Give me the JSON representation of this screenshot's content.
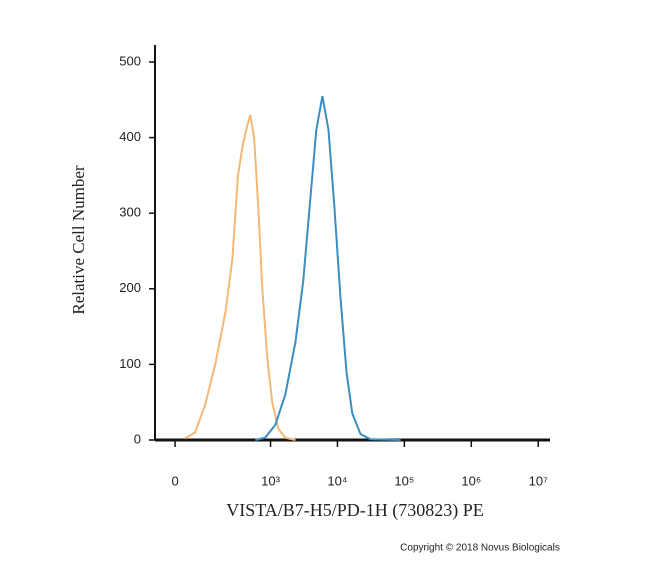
{
  "chart_data": {
    "type": "line",
    "xlabel": "VISTA/B7-H5/PD-1H (730823) PE",
    "ylabel": "Relative Cell Number",
    "annotation": "Copyright © 2018 Novus Biologicals",
    "xscale": "biexponential",
    "xlim": [
      -56,
      15000000
    ],
    "xticks": [
      0,
      {
        "value": 1000,
        "label": "10³"
      },
      {
        "value": 10000,
        "label": "10⁴"
      },
      {
        "value": 100000,
        "label": "10⁵"
      },
      {
        "value": 1000000,
        "label": "10⁶"
      },
      {
        "value": 10000000,
        "label": "10⁷"
      }
    ],
    "ylim": [
      0,
      500
    ],
    "yticks": [
      0,
      100,
      200,
      300,
      400,
      500
    ],
    "series": [
      {
        "color": "#f2b877",
        "x": [
          26,
          56,
          91,
          140,
          207,
          264,
          323,
          381,
          444,
          497,
          567,
          653,
          751,
          890,
          1060,
          1306,
          1665,
          2360
        ],
        "values": [
          2,
          10,
          45,
          100,
          170,
          240,
          350,
          390,
          415,
          430,
          400,
          310,
          200,
          110,
          50,
          15,
          3,
          0
        ]
      },
      {
        "color": "#3a8fc0",
        "x": [
          591,
          828,
          1180,
          1665,
          2360,
          3080,
          3950,
          4830,
          5960,
          7350,
          8980,
          11080,
          13670,
          16700,
          22100,
          31100,
          88000
        ],
        "values": [
          0,
          3,
          20,
          60,
          130,
          210,
          320,
          410,
          455,
          410,
          310,
          190,
          90,
          35,
          8,
          1,
          0
        ]
      }
    ]
  }
}
